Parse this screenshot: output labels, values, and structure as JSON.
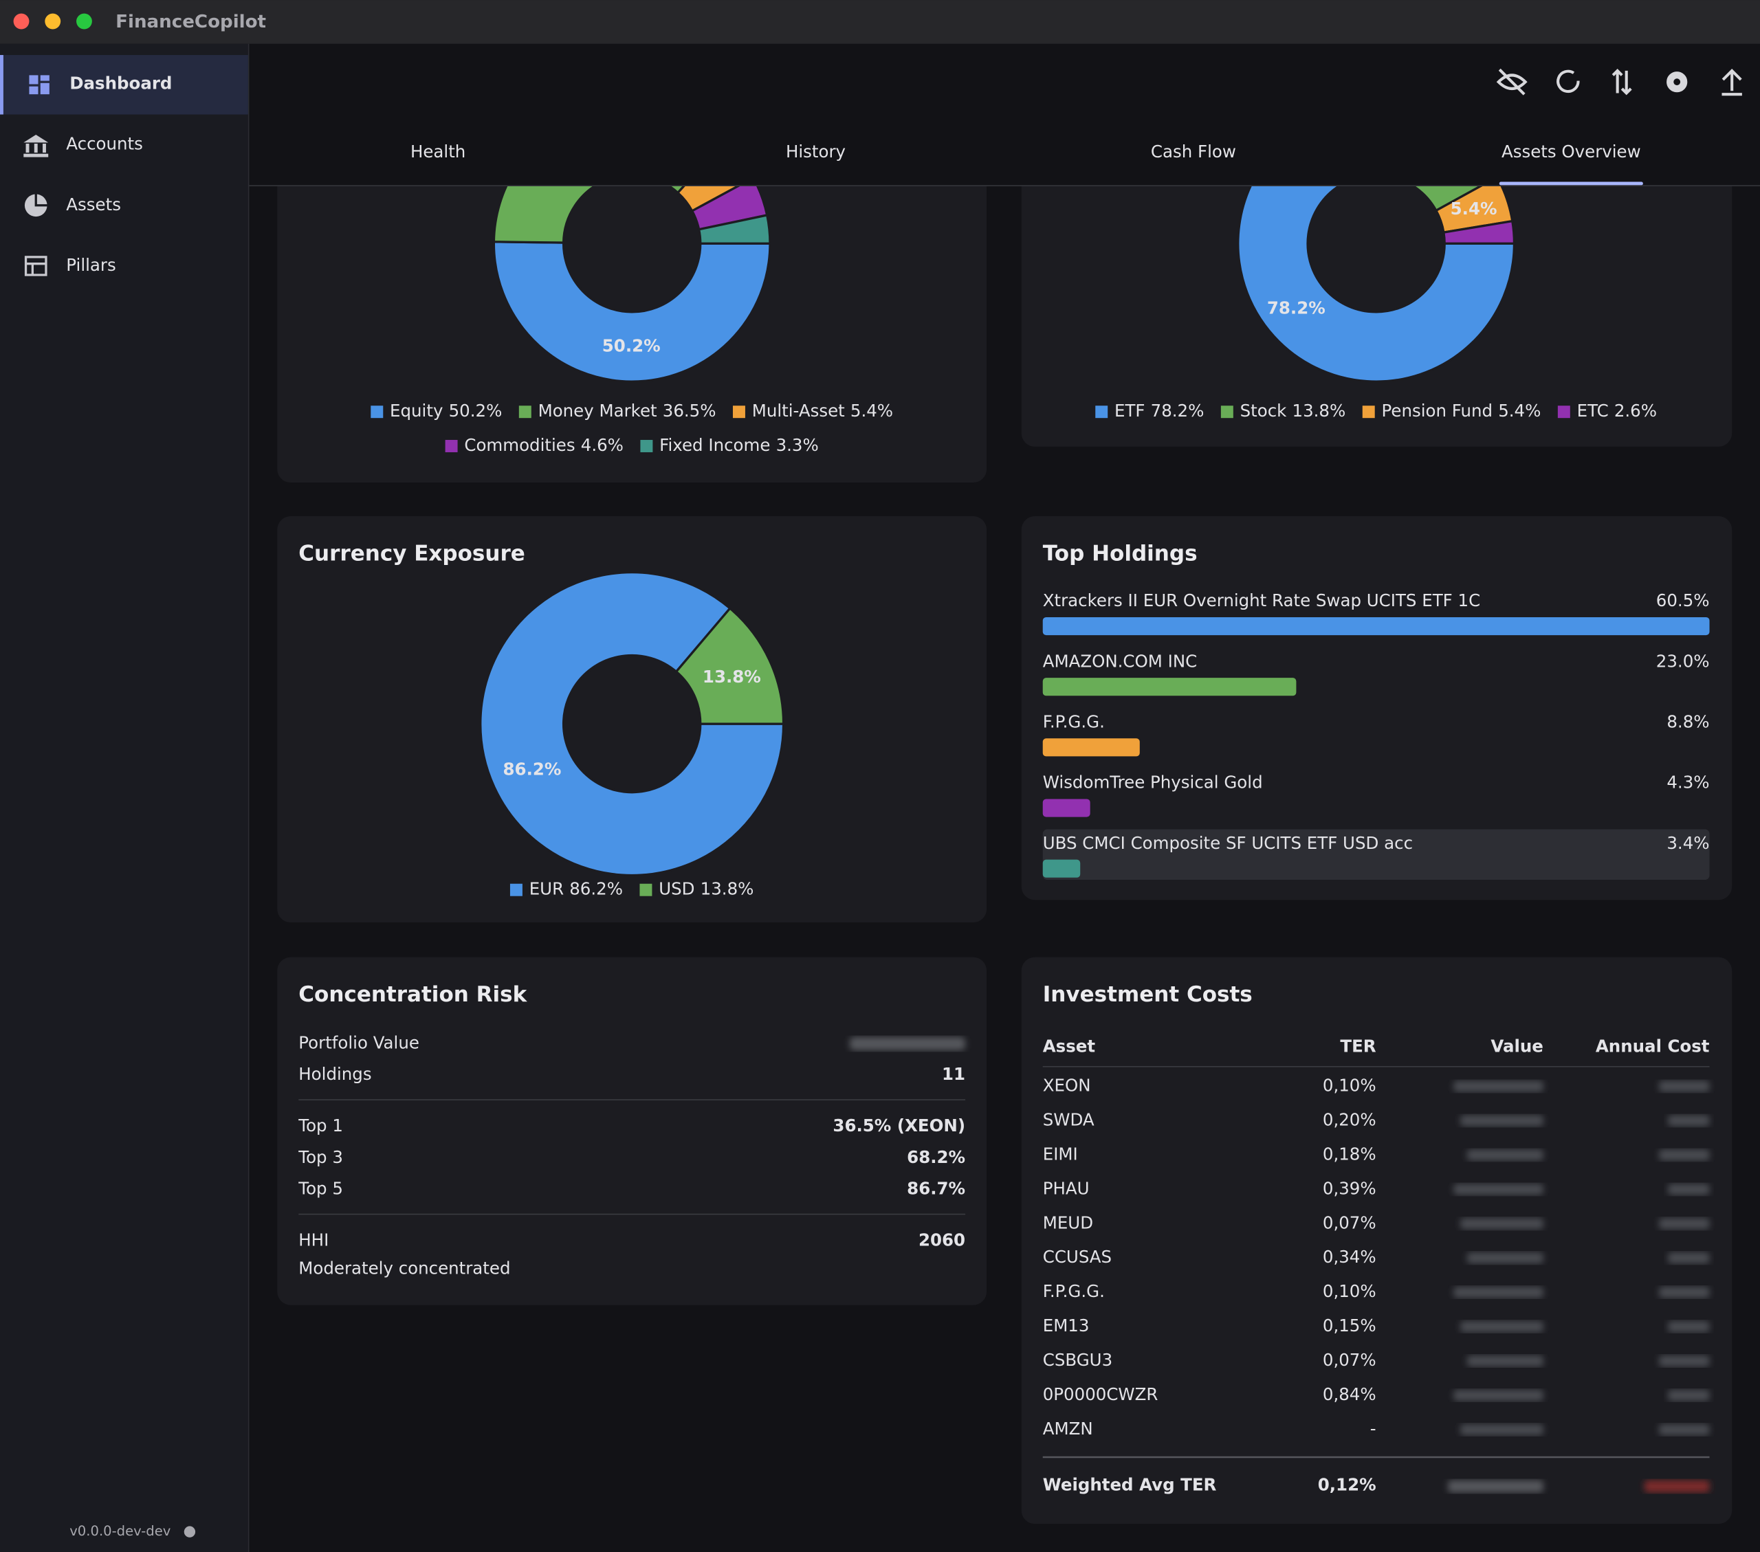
{
  "window": {
    "title": "FinanceCopilot"
  },
  "sidebar": {
    "items": [
      {
        "label": "Dashboard",
        "active": true
      },
      {
        "label": "Accounts",
        "active": false
      },
      {
        "label": "Assets",
        "active": false
      },
      {
        "label": "Pillars",
        "active": false
      }
    ],
    "version": "v0.0.0-dev-dev"
  },
  "tabs": {
    "items": [
      "Health",
      "History",
      "Cash Flow",
      "Assets Overview"
    ],
    "active": 3
  },
  "asset_class": {
    "type": "pie",
    "categories": [
      "Equity",
      "Money Market",
      "Multi-Asset",
      "Commodities",
      "Fixed Income"
    ],
    "values": [
      50.2,
      36.5,
      5.4,
      4.6,
      3.3
    ],
    "value_labels": [
      "50.2%",
      "36.5%",
      "5.4%",
      "4.6%",
      "3.3%"
    ],
    "colors": [
      "#4a93e6",
      "#69ad57",
      "#f0a13a",
      "#9231b0",
      "#3f978a"
    ]
  },
  "asset_type": {
    "type": "pie",
    "categories": [
      "ETF",
      "Stock",
      "Pension Fund",
      "ETC"
    ],
    "values": [
      78.2,
      13.8,
      5.4,
      2.6
    ],
    "value_labels": [
      "78.2%",
      "13.8%",
      "5.4%",
      "2.6%"
    ],
    "colors": [
      "#4a93e6",
      "#69ad57",
      "#f0a13a",
      "#9231b0"
    ]
  },
  "currency_exposure": {
    "type": "pie",
    "title": "Currency Exposure",
    "categories": [
      "EUR",
      "USD"
    ],
    "values": [
      86.2,
      13.8
    ],
    "value_labels": [
      "86.2%",
      "13.8%"
    ],
    "colors": [
      "#4a93e6",
      "#69ad57"
    ]
  },
  "top_holdings": {
    "type": "bar",
    "title": "Top Holdings",
    "categories": [
      "Xtrackers II EUR Overnight Rate Swap UCITS ETF 1C",
      "AMAZON.COM INC",
      "F.P.G.G.",
      "WisdomTree Physical Gold",
      "UBS CMCI Composite SF UCITS ETF USD acc"
    ],
    "values": [
      60.5,
      23.0,
      8.8,
      4.3,
      3.4
    ],
    "value_labels": [
      "60.5%",
      "23.0%",
      "8.8%",
      "4.3%",
      "3.4%"
    ],
    "colors": [
      "#4a93e6",
      "#69ad57",
      "#f0a13a",
      "#9231b0",
      "#3f978a"
    ]
  },
  "concentration_risk": {
    "title": "Concentration Risk",
    "sections": [
      [
        {
          "label": "Portfolio Value"
        },
        {
          "label": "Holdings",
          "value": 11
        }
      ],
      [
        {
          "label": "Top 1",
          "value": "36.5%  (XEON)"
        },
        {
          "label": "Top 3",
          "value": "68.2%"
        },
        {
          "label": "Top 5",
          "value": "86.7%"
        }
      ],
      [
        {
          "label": "HHI",
          "value": 2060
        }
      ]
    ],
    "note": "Moderately concentrated"
  },
  "investment_costs": {
    "title": "Investment Costs",
    "columns": [
      "Asset",
      "TER",
      "Value",
      "Annual Cost"
    ],
    "rows": [
      {
        "asset": "XEON",
        "ter": "0,10%",
        "color": "#7cc26a"
      },
      {
        "asset": "SWDA",
        "ter": "0,20%",
        "color": "#7cc26a"
      },
      {
        "asset": "EIMI",
        "ter": "0,18%",
        "color": "#7cc26a"
      },
      {
        "asset": "PHAU",
        "ter": "0,39%",
        "color": "#7cc26a"
      },
      {
        "asset": "MEUD",
        "ter": "0,07%",
        "color": "#7cc26a"
      },
      {
        "asset": "CCUSAS",
        "ter": "0,34%",
        "color": "#7cc26a"
      },
      {
        "asset": "F.P.G.G.",
        "ter": "0,10%",
        "color": "#7cc26a"
      },
      {
        "asset": "EM13",
        "ter": "0,15%",
        "color": "#7cc26a"
      },
      {
        "asset": "CSBGU3",
        "ter": "0,07%",
        "color": "#7cc26a"
      },
      {
        "asset": "0P0000CWZR",
        "ter": "0,84%",
        "color": "#f0a13a"
      },
      {
        "asset": "AMZN",
        "ter": "-",
        "color": "#9a9aa0"
      }
    ],
    "footer": {
      "label": "Weighted Avg TER",
      "ter": "0,12%",
      "color": "#7cc26a"
    }
  }
}
